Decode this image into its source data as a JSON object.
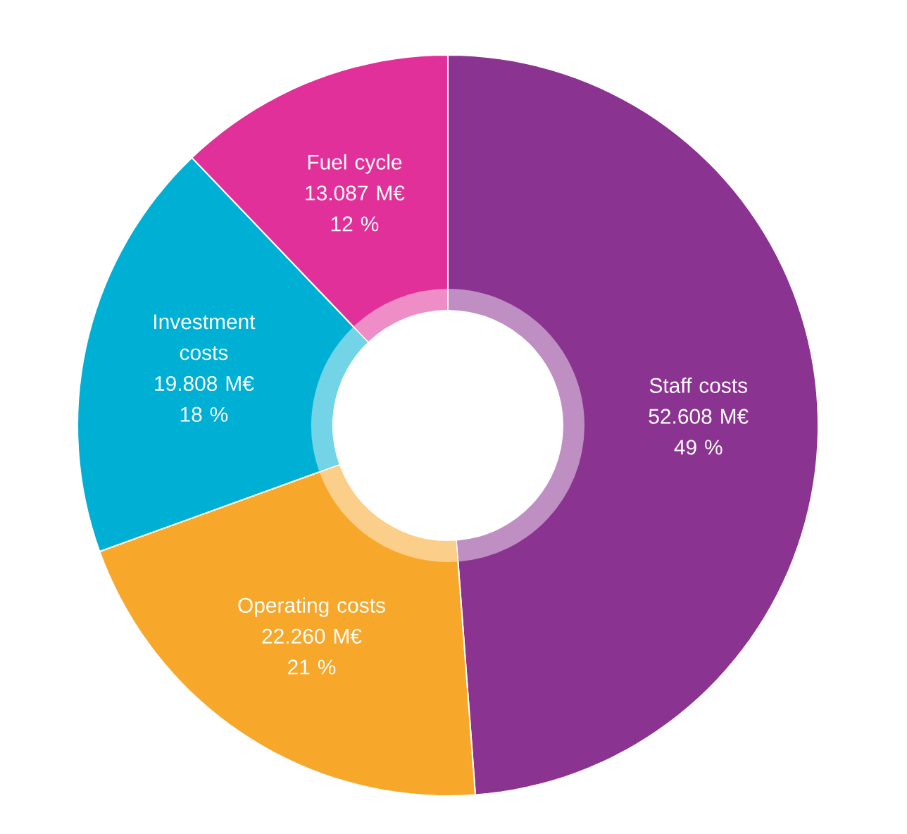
{
  "chart_data": {
    "type": "donut",
    "categories": [
      "Staff costs",
      "Operating costs",
      "Investment costs",
      "Fuel cycle"
    ],
    "values": [
      52.608,
      22.26,
      19.808,
      13.087
    ],
    "colors": [
      "#8b3391",
      "#f7a82b",
      "#00b0d4",
      "#e2309a"
    ],
    "value_labels": [
      "52.608 M€",
      "22.260 M€",
      "19.808 M€",
      "13.087 M€"
    ],
    "annotations": [
      "49 %",
      "21 %",
      "18 %",
      "12 %"
    ]
  }
}
